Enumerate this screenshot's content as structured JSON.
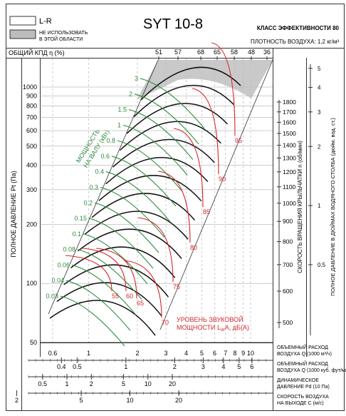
{
  "header": {
    "model": "SYT 10-8",
    "legend_lr": "L-R",
    "legend_na_line1": "НЕ ИСПОЛЬЗОВАТЬ",
    "legend_na_line2": "В ЭТОЙ ОБЛАСТИ",
    "efficiency_class": "КЛАСС ЭФФЕКТИВНОСТИ 80",
    "air_density": "ПЛОТНОСТЬ ВОЗДУХА: 1,2 кг/м³",
    "total_eff_label": "ОБЩИЙ КПД η (%)"
  },
  "colors": {
    "grid": "#9a9a9a",
    "frame": "#333333",
    "speed_lines": "#111111",
    "power_lines": "#2e8b3e",
    "noise_lines": "#d6262a",
    "unused_area": "#bcbcbc"
  },
  "chart_data": {
    "type": "line",
    "title": "SYT 10-8",
    "ylabel": "ПОЛНОЕ ДАВЛЕНИЕ Pt (Па)",
    "y_scale": "log",
    "ylim": [
      50,
      1400
    ],
    "y_ticks": [
      "50",
      "100",
      "200",
      "300",
      "400",
      "500",
      "600",
      "700",
      "800",
      "900",
      "1000"
    ],
    "x_scale": "log",
    "xlim": [
      0.5,
      12
    ],
    "efficiency_ticks": [
      "51",
      "57",
      "68",
      "65",
      "58",
      "48",
      "36"
    ],
    "flow_axis": {
      "label_line1": "ОБЪЕМНЫЙ РАСХОД",
      "label_line2": "ВОЗДУХА Q (1000 м³/ч)",
      "ticks": [
        "0.6",
        "1",
        "2",
        "3",
        "4",
        "5",
        "6",
        "7",
        "8",
        "9",
        "10"
      ]
    },
    "flow_cfm_axis": {
      "label_line1": "ОБЪЕМНЫЙ РАСХОД",
      "label_line2": "ВОЗДУХА Q (1000 куб. фут/мин)",
      "ticks": [
        "0.4",
        "0.5",
        "1",
        "2",
        "3",
        "4",
        "5",
        "6"
      ]
    },
    "dynamic_pressure_axis": {
      "label_line1": "ДИНАМИЧЕСКОЕ",
      "label_line2": "ДАВЛЕНИЕ Pd (10 Па)",
      "ticks": [
        "0.5",
        "1",
        "2",
        "5",
        "10",
        "20"
      ]
    },
    "velocity_axis": {
      "label_line1": "СКОРОСТЬ ВОЗДУХА",
      "label_line2": "НА ВЫХОДЕ С (м/с)",
      "ticks": [
        "2",
        "5",
        "10",
        "20"
      ]
    },
    "speed_axis": {
      "label": "СКОРОСТЬ ВРАЩЕНИЯ КРЫЛЬЧАТКИ n (об/мин)",
      "ticks": [
        "500",
        "600",
        "700",
        "800",
        "900",
        "1000",
        "1100",
        "1200",
        "1300",
        "1400",
        "1500",
        "1600",
        "1700",
        "1800"
      ]
    },
    "inwg_axis": {
      "label": "ПОЛНОЕ ДАВЛЕНИЕ В ДЮЙМАХ ВОДЯНОГО СТОЛБА (дюйм. вод. ст.)",
      "ticks": [
        "0.5",
        "1",
        "2",
        "3",
        "4",
        "5"
      ]
    },
    "power_label_line1": "МОЩНОСТЬ",
    "power_label_line2": "НА ВАЛУ (кВт)",
    "power_values": [
      "0.03",
      "0.04",
      "0.06",
      "0.08",
      "0.1",
      "0.15",
      "0.2",
      "0.3",
      "0.4",
      "0.6",
      "0.8",
      "1",
      "1.5",
      "2",
      "3"
    ],
    "noise_label_line1": "УРОВЕНЬ ЗВУКОВОЙ",
    "noise_label_line2": "МОЩНОСТИ L",
    "noise_label_sub": "W",
    "noise_label_tail": "A, дБ(А)",
    "noise_values": [
      "55",
      "60",
      "65",
      "70",
      "75",
      "80",
      "85",
      "90",
      "95"
    ],
    "speed_curves_rpm": [
      500,
      600,
      700,
      800,
      900,
      1000,
      1100,
      1200,
      1300,
      1400,
      1500,
      1600,
      1700,
      1800
    ],
    "grid": true
  }
}
